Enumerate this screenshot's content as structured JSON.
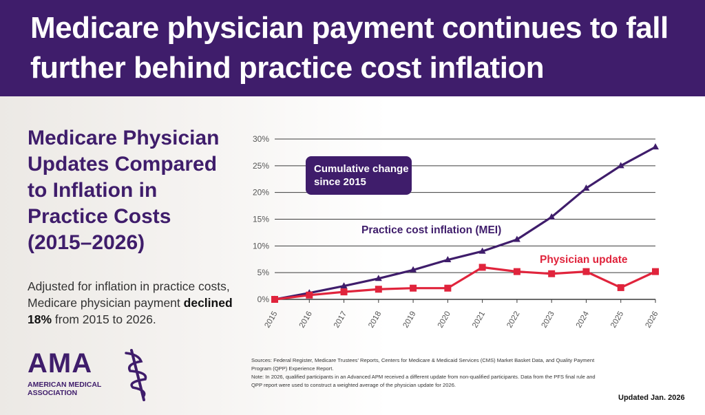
{
  "banner": {
    "title": "Medicare physician payment continues to fall further behind practice cost inflation"
  },
  "left": {
    "subtitle": "Medicare Physician Updates Compared to Inflation in Practice Costs (2015–2026)",
    "desc_pre": "Adjusted for inflation in practice costs, Medicare physician payment ",
    "desc_bold": "declined 18%",
    "desc_post": " from 2015 to 2026."
  },
  "logo": {
    "word": "AMA",
    "line1": "AMERICAN MEDICAL",
    "line2": "ASSOCIATION",
    "icon": "caduceus-staff-icon"
  },
  "callout": {
    "text": "Cumulative change since 2015"
  },
  "colors": {
    "purple": "#3f1d6b",
    "red": "#e0243c",
    "grid": "#3a3a3a"
  },
  "chart_data": {
    "type": "line",
    "categories": [
      "2015",
      "2016",
      "2017",
      "2018",
      "2019",
      "2020",
      "2021",
      "2022",
      "2023",
      "2024",
      "2025",
      "2026"
    ],
    "ylim": [
      0,
      30
    ],
    "yticks": [
      "0%",
      "5%",
      "10%",
      "15%",
      "20%",
      "25%",
      "30%"
    ],
    "grid": true,
    "series": [
      {
        "name": "Practice cost inflation (MEI)",
        "marker": "triangle",
        "values": [
          0,
          1.2,
          2.5,
          3.9,
          5.5,
          7.4,
          9.0,
          11.2,
          15.4,
          20.8,
          25.0,
          28.5
        ]
      },
      {
        "name": "Physician update",
        "marker": "square",
        "values": [
          0,
          0.8,
          1.4,
          1.9,
          2.1,
          2.1,
          6.0,
          5.2,
          4.8,
          5.2,
          2.2,
          5.2
        ]
      }
    ]
  },
  "sources": {
    "line1": "Sources: Federal Register, Medicare Trustees' Reports, Centers for Medicare & Medicaid Services (CMS) Market Basket Data, and Quality Payment Program (QPP) Experience Report.",
    "line2": "Note: In 2026, qualified participants in an Advanced APM received a different update from non-qualified participants. Data from the PFS final rule and QPP report were used to construct a weighted average of the physician update for 2026."
  },
  "updated": "Updated Jan. 2026"
}
